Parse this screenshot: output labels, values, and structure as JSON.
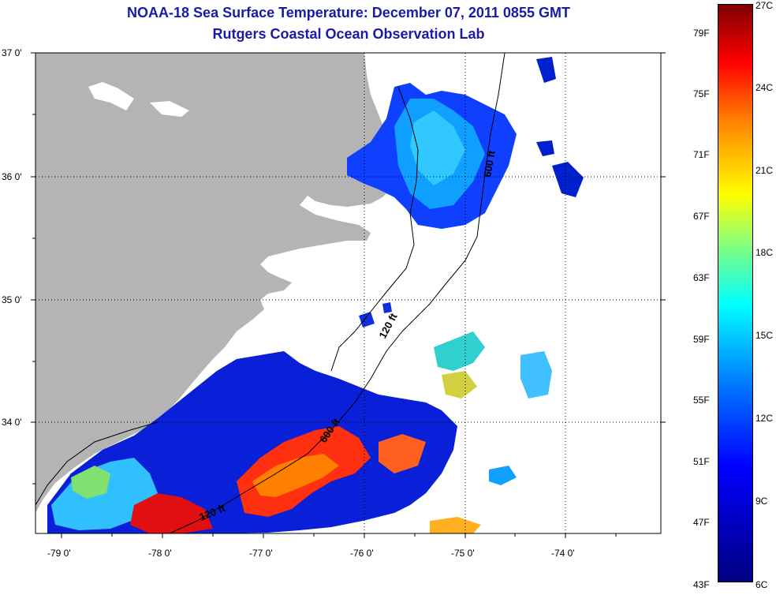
{
  "header": {
    "title": "NOAA-18 Sea Surface Temperature:  December 07, 2011 0855 GMT",
    "subtitle": "Rutgers Coastal Ocean Observation Lab"
  },
  "map": {
    "lon_range": [
      -79.3,
      -73.2
    ],
    "lat_range": [
      33.1,
      37.0
    ],
    "lon_ticks": [
      "-79 0'",
      "-78 0'",
      "-77 0'",
      "-76 0'",
      "-75 0'",
      "-74 0'"
    ],
    "lat_ticks": [
      "37 0'",
      "36 0'",
      "35 0'",
      "34 0'"
    ],
    "isobath_labels": [
      "600 ft",
      "120 ft",
      "600 ft",
      "120 ft"
    ],
    "land_color": "#b4b4b4",
    "grid": true
  },
  "colorbar": {
    "fahrenheit_labels": [
      "79F",
      "75F",
      "71F",
      "67F",
      "63F",
      "59F",
      "55F",
      "51F",
      "47F",
      "43F"
    ],
    "celsius_labels": [
      "27C",
      "24C",
      "21C",
      "18C",
      "15C",
      "12C",
      "9C",
      "6C"
    ],
    "range_c": [
      6,
      27
    ],
    "colormap": "jet"
  }
}
